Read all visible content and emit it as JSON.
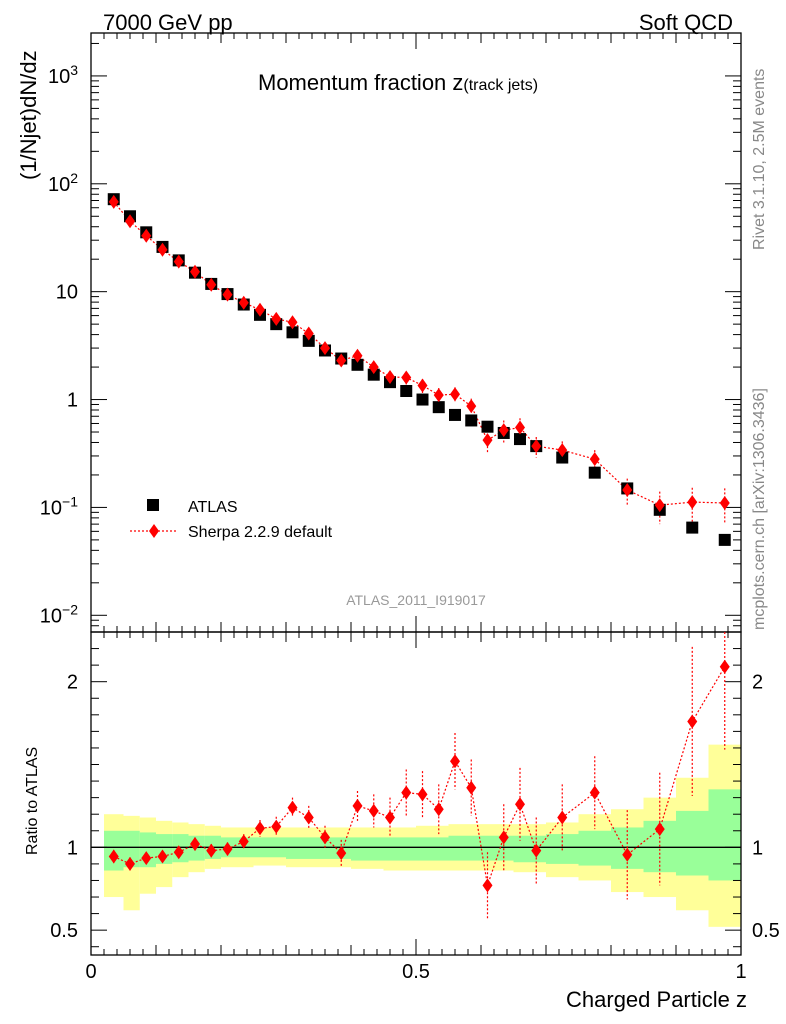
{
  "header": {
    "energy_label": "7000 GeV pp",
    "process_label": "Soft QCD",
    "plot_title": "Momentum fraction z",
    "plot_title_suffix": "(track jets)",
    "analysis_id": "ATLAS_2011_I919017",
    "rivet_label": "Rivet 3.1.10,  2.5M events",
    "source_label": "mcplots.cern.ch [arXiv:1306.3436]"
  },
  "colors": {
    "atlas": "#000000",
    "sherpa": "#ff0000",
    "band_inner": "#99ff99",
    "band_outer": "#ffff99"
  },
  "chart_data": [
    {
      "type": "scatter",
      "panel": "main",
      "title": "Momentum fraction z(track jets)",
      "ylabel": "(1/Njet)dN/dz",
      "yscale": "log",
      "ylim": [
        0.007,
        2500
      ],
      "xlim": [
        0,
        1
      ],
      "y_ticks": [
        {
          "value": 0.01,
          "label": "10",
          "sup": "−2"
        },
        {
          "value": 0.1,
          "label": "10",
          "sup": "−1"
        },
        {
          "value": 1,
          "label": "1",
          "sup": ""
        },
        {
          "value": 10,
          "label": "10",
          "sup": ""
        },
        {
          "value": 100,
          "label": "10",
          "sup": "2"
        },
        {
          "value": 1000,
          "label": "10",
          "sup": "3"
        }
      ],
      "legend_position": "bottom-left",
      "series": [
        {
          "name": "ATLAS",
          "marker": "square",
          "points": [
            {
              "x": 0.035,
              "y": 72
            },
            {
              "x": 0.06,
              "y": 50
            },
            {
              "x": 0.085,
              "y": 35.5
            },
            {
              "x": 0.11,
              "y": 26
            },
            {
              "x": 0.135,
              "y": 19.5
            },
            {
              "x": 0.16,
              "y": 15
            },
            {
              "x": 0.185,
              "y": 11.8
            },
            {
              "x": 0.21,
              "y": 9.5
            },
            {
              "x": 0.235,
              "y": 7.6
            },
            {
              "x": 0.26,
              "y": 6.1
            },
            {
              "x": 0.285,
              "y": 5
            },
            {
              "x": 0.31,
              "y": 4.2
            },
            {
              "x": 0.335,
              "y": 3.5
            },
            {
              "x": 0.36,
              "y": 2.85
            },
            {
              "x": 0.385,
              "y": 2.4
            },
            {
              "x": 0.41,
              "y": 2.1
            },
            {
              "x": 0.435,
              "y": 1.7
            },
            {
              "x": 0.46,
              "y": 1.45
            },
            {
              "x": 0.485,
              "y": 1.2
            },
            {
              "x": 0.51,
              "y": 1.0
            },
            {
              "x": 0.535,
              "y": 0.85
            },
            {
              "x": 0.56,
              "y": 0.72
            },
            {
              "x": 0.585,
              "y": 0.64
            },
            {
              "x": 0.61,
              "y": 0.56
            },
            {
              "x": 0.635,
              "y": 0.49
            },
            {
              "x": 0.66,
              "y": 0.43
            },
            {
              "x": 0.685,
              "y": 0.37
            },
            {
              "x": 0.725,
              "y": 0.29
            },
            {
              "x": 0.775,
              "y": 0.21
            },
            {
              "x": 0.825,
              "y": 0.15
            },
            {
              "x": 0.875,
              "y": 0.095
            },
            {
              "x": 0.925,
              "y": 0.065
            },
            {
              "x": 0.975,
              "y": 0.05
            }
          ]
        },
        {
          "name": "Sherpa 2.2.9 default",
          "marker": "diamond",
          "line": "dotted",
          "points": [
            {
              "x": 0.035,
              "y": 68,
              "err": 5
            },
            {
              "x": 0.06,
              "y": 45,
              "err": 3.5
            },
            {
              "x": 0.085,
              "y": 33,
              "err": 2.5
            },
            {
              "x": 0.11,
              "y": 24.5,
              "err": 1.8
            },
            {
              "x": 0.135,
              "y": 19,
              "err": 1.4
            },
            {
              "x": 0.16,
              "y": 15.3,
              "err": 1.1
            },
            {
              "x": 0.185,
              "y": 11.6,
              "err": 0.9
            },
            {
              "x": 0.21,
              "y": 9.4,
              "err": 0.7
            },
            {
              "x": 0.235,
              "y": 7.9,
              "err": 0.6
            },
            {
              "x": 0.26,
              "y": 6.8,
              "err": 0.5
            },
            {
              "x": 0.285,
              "y": 5.6,
              "err": 0.45
            },
            {
              "x": 0.31,
              "y": 5.2,
              "err": 0.45
            },
            {
              "x": 0.335,
              "y": 4.1,
              "err": 0.4
            },
            {
              "x": 0.36,
              "y": 3.0,
              "err": 0.3
            },
            {
              "x": 0.385,
              "y": 2.3,
              "err": 0.25
            },
            {
              "x": 0.41,
              "y": 2.55,
              "err": 0.28
            },
            {
              "x": 0.435,
              "y": 2.0,
              "err": 0.25
            },
            {
              "x": 0.46,
              "y": 1.62,
              "err": 0.22
            },
            {
              "x": 0.485,
              "y": 1.6,
              "err": 0.22
            },
            {
              "x": 0.51,
              "y": 1.35,
              "err": 0.2
            },
            {
              "x": 0.535,
              "y": 1.1,
              "err": 0.18
            },
            {
              "x": 0.56,
              "y": 1.12,
              "err": 0.18
            },
            {
              "x": 0.585,
              "y": 0.87,
              "err": 0.15
            },
            {
              "x": 0.61,
              "y": 0.42,
              "err": 0.1
            },
            {
              "x": 0.635,
              "y": 0.52,
              "err": 0.12
            },
            {
              "x": 0.66,
              "y": 0.55,
              "err": 0.12
            },
            {
              "x": 0.685,
              "y": 0.37,
              "err": 0.08
            },
            {
              "x": 0.725,
              "y": 0.34,
              "err": 0.07
            },
            {
              "x": 0.775,
              "y": 0.28,
              "err": 0.06
            },
            {
              "x": 0.825,
              "y": 0.145,
              "err": 0.04
            },
            {
              "x": 0.875,
              "y": 0.105,
              "err": 0.035
            },
            {
              "x": 0.925,
              "y": 0.112,
              "err": 0.04
            },
            {
              "x": 0.975,
              "y": 0.11,
              "err": 0.04
            }
          ]
        }
      ]
    },
    {
      "type": "scatter",
      "panel": "ratio",
      "ylabel": "Ratio to ATLAS",
      "xlabel": "Charged Particle z",
      "ylim": [
        0.35,
        2.3
      ],
      "xlim": [
        0,
        1
      ],
      "y_ticks": [
        {
          "value": 0.5,
          "label": "0.5"
        },
        {
          "value": 1,
          "label": "1"
        },
        {
          "value": 2,
          "label": "2"
        }
      ],
      "x_ticks": [
        {
          "value": 0,
          "label": "0"
        },
        {
          "value": 0.5,
          "label": "0.5"
        },
        {
          "value": 1,
          "label": "1"
        }
      ],
      "reference_line": 1,
      "bands": [
        {
          "x0": 0.02,
          "x1": 0.05,
          "inner": [
            0.86,
            1.1
          ],
          "outer": [
            0.7,
            1.2
          ]
        },
        {
          "x0": 0.05,
          "x1": 0.075,
          "inner": [
            0.88,
            1.1
          ],
          "outer": [
            0.62,
            1.19
          ]
        },
        {
          "x0": 0.075,
          "x1": 0.1,
          "inner": [
            0.88,
            1.09
          ],
          "outer": [
            0.72,
            1.18
          ]
        },
        {
          "x0": 0.1,
          "x1": 0.125,
          "inner": [
            0.9,
            1.08
          ],
          "outer": [
            0.76,
            1.16
          ]
        },
        {
          "x0": 0.125,
          "x1": 0.15,
          "inner": [
            0.91,
            1.08
          ],
          "outer": [
            0.82,
            1.15
          ]
        },
        {
          "x0": 0.15,
          "x1": 0.175,
          "inner": [
            0.92,
            1.07
          ],
          "outer": [
            0.85,
            1.14
          ]
        },
        {
          "x0": 0.175,
          "x1": 0.2,
          "inner": [
            0.93,
            1.07
          ],
          "outer": [
            0.87,
            1.13
          ]
        },
        {
          "x0": 0.2,
          "x1": 0.25,
          "inner": [
            0.94,
            1.06
          ],
          "outer": [
            0.88,
            1.12
          ]
        },
        {
          "x0": 0.25,
          "x1": 0.3,
          "inner": [
            0.94,
            1.06
          ],
          "outer": [
            0.89,
            1.12
          ]
        },
        {
          "x0": 0.3,
          "x1": 0.35,
          "inner": [
            0.93,
            1.06
          ],
          "outer": [
            0.88,
            1.12
          ]
        },
        {
          "x0": 0.35,
          "x1": 0.4,
          "inner": [
            0.93,
            1.06
          ],
          "outer": [
            0.88,
            1.12
          ]
        },
        {
          "x0": 0.4,
          "x1": 0.45,
          "inner": [
            0.92,
            1.06
          ],
          "outer": [
            0.87,
            1.12
          ]
        },
        {
          "x0": 0.45,
          "x1": 0.5,
          "inner": [
            0.92,
            1.06
          ],
          "outer": [
            0.86,
            1.12
          ]
        },
        {
          "x0": 0.5,
          "x1": 0.55,
          "inner": [
            0.92,
            1.06
          ],
          "outer": [
            0.86,
            1.13
          ]
        },
        {
          "x0": 0.55,
          "x1": 0.6,
          "inner": [
            0.92,
            1.07
          ],
          "outer": [
            0.86,
            1.14
          ]
        },
        {
          "x0": 0.6,
          "x1": 0.65,
          "inner": [
            0.92,
            1.07
          ],
          "outer": [
            0.86,
            1.14
          ]
        },
        {
          "x0": 0.65,
          "x1": 0.7,
          "inner": [
            0.91,
            1.07
          ],
          "outer": [
            0.85,
            1.14
          ]
        },
        {
          "x0": 0.7,
          "x1": 0.75,
          "inner": [
            0.9,
            1.08
          ],
          "outer": [
            0.82,
            1.15
          ]
        },
        {
          "x0": 0.75,
          "x1": 0.8,
          "inner": [
            0.89,
            1.1
          ],
          "outer": [
            0.8,
            1.2
          ]
        },
        {
          "x0": 0.8,
          "x1": 0.85,
          "inner": [
            0.87,
            1.12
          ],
          "outer": [
            0.73,
            1.23
          ]
        },
        {
          "x0": 0.85,
          "x1": 0.9,
          "inner": [
            0.85,
            1.16
          ],
          "outer": [
            0.7,
            1.3
          ]
        },
        {
          "x0": 0.9,
          "x1": 0.95,
          "inner": [
            0.83,
            1.22
          ],
          "outer": [
            0.62,
            1.42
          ]
        },
        {
          "x0": 0.95,
          "x1": 1.0,
          "inner": [
            0.8,
            1.35
          ],
          "outer": [
            0.52,
            1.62
          ]
        }
      ],
      "series": [
        {
          "name": "Sherpa 2.2.9 default / ATLAS",
          "marker": "diamond",
          "line": "dotted",
          "points": [
            {
              "x": 0.035,
              "y": 0.945,
              "err": 0.04
            },
            {
              "x": 0.06,
              "y": 0.9,
              "err": 0.04
            },
            {
              "x": 0.085,
              "y": 0.935,
              "err": 0.035
            },
            {
              "x": 0.11,
              "y": 0.945,
              "err": 0.035
            },
            {
              "x": 0.135,
              "y": 0.97,
              "err": 0.035
            },
            {
              "x": 0.16,
              "y": 1.02,
              "err": 0.04
            },
            {
              "x": 0.185,
              "y": 0.98,
              "err": 0.04
            },
            {
              "x": 0.21,
              "y": 0.99,
              "err": 0.04
            },
            {
              "x": 0.235,
              "y": 1.035,
              "err": 0.045
            },
            {
              "x": 0.26,
              "y": 1.115,
              "err": 0.05
            },
            {
              "x": 0.285,
              "y": 1.125,
              "err": 0.06
            },
            {
              "x": 0.31,
              "y": 1.24,
              "err": 0.06
            },
            {
              "x": 0.335,
              "y": 1.18,
              "err": 0.07
            },
            {
              "x": 0.36,
              "y": 1.06,
              "err": 0.07
            },
            {
              "x": 0.385,
              "y": 0.965,
              "err": 0.08
            },
            {
              "x": 0.41,
              "y": 1.25,
              "err": 0.09
            },
            {
              "x": 0.435,
              "y": 1.22,
              "err": 0.1
            },
            {
              "x": 0.46,
              "y": 1.18,
              "err": 0.12
            },
            {
              "x": 0.485,
              "y": 1.33,
              "err": 0.14
            },
            {
              "x": 0.51,
              "y": 1.32,
              "err": 0.14
            },
            {
              "x": 0.535,
              "y": 1.23,
              "err": 0.15
            },
            {
              "x": 0.56,
              "y": 1.52,
              "err": 0.17
            },
            {
              "x": 0.585,
              "y": 1.36,
              "err": 0.17
            },
            {
              "x": 0.61,
              "y": 0.77,
              "err": 0.2
            },
            {
              "x": 0.635,
              "y": 1.06,
              "err": 0.2
            },
            {
              "x": 0.66,
              "y": 1.26,
              "err": 0.22
            },
            {
              "x": 0.685,
              "y": 0.98,
              "err": 0.2
            },
            {
              "x": 0.725,
              "y": 1.18,
              "err": 0.2
            },
            {
              "x": 0.775,
              "y": 1.33,
              "err": 0.22
            },
            {
              "x": 0.825,
              "y": 0.955,
              "err": 0.27
            },
            {
              "x": 0.875,
              "y": 1.11,
              "err": 0.34
            },
            {
              "x": 0.925,
              "y": 1.76,
              "err": 0.45
            },
            {
              "x": 0.975,
              "y": 2.09,
              "err": 0.5
            }
          ]
        }
      ]
    }
  ]
}
